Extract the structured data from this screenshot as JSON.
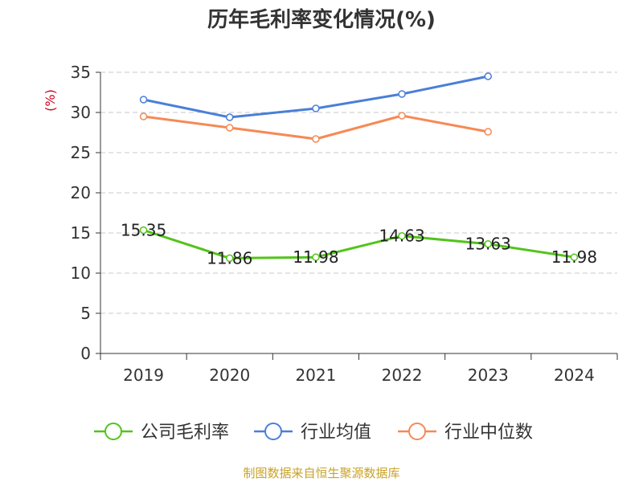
{
  "chart_data": {
    "type": "line",
    "title": "历年毛利率变化情况(%)",
    "ylabel": "(%)",
    "xlabel": "",
    "categories": [
      "2019",
      "2020",
      "2021",
      "2022",
      "2023",
      "2024"
    ],
    "ylim": [
      0,
      35
    ],
    "yticks": [
      "0",
      "5",
      "10",
      "15",
      "20",
      "25",
      "30",
      "35"
    ],
    "grid": true,
    "legend_position": "bottom",
    "series": [
      {
        "name": "公司毛利率",
        "color": "#52c41a",
        "values": [
          15.35,
          11.86,
          11.98,
          14.63,
          13.63,
          11.98
        ],
        "labels": [
          "15.35",
          "11.86",
          "11.98",
          "14.63",
          "13.63",
          "11.98"
        ]
      },
      {
        "name": "行业均值",
        "color": "#4a7fd8",
        "values": [
          31.6,
          29.4,
          30.5,
          32.3,
          34.5,
          null
        ]
      },
      {
        "name": "行业中位数",
        "color": "#f58a55",
        "values": [
          29.5,
          28.1,
          26.7,
          29.6,
          27.6,
          null
        ]
      }
    ]
  },
  "footer": {
    "source": "制图数据来自恒生聚源数据库"
  }
}
